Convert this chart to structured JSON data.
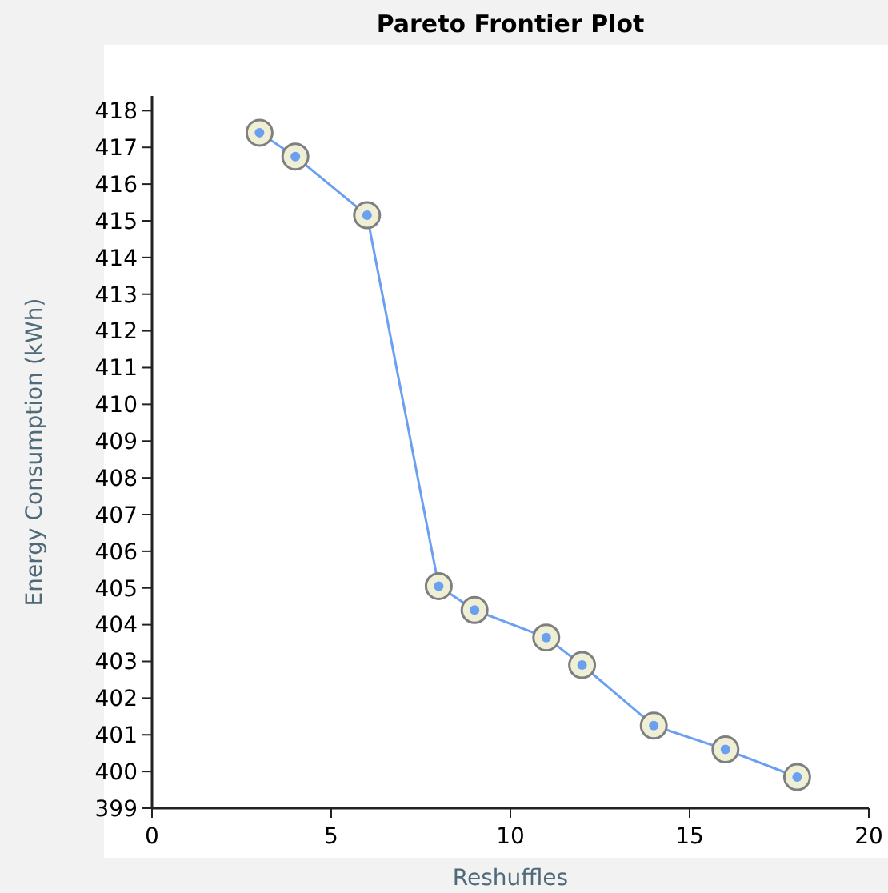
{
  "chart_data": {
    "type": "line",
    "title": "Pareto Frontier Plot",
    "xlabel": "Reshuffles",
    "ylabel": "Energy Consumption (kWh)",
    "x": [
      3,
      4,
      6,
      8,
      9,
      11,
      12,
      14,
      16,
      18
    ],
    "series": [
      {
        "color": "#6b9ff0",
        "values": [
          417.4,
          416.75,
          415.15,
          405.05,
          404.4,
          403.65,
          402.9,
          401.25,
          400.6,
          399.85
        ]
      }
    ],
    "xlim": [
      0,
      20
    ],
    "xticks": [
      0,
      5,
      10,
      15,
      20
    ],
    "ylim": [
      399,
      418.4
    ],
    "yticks": [
      399,
      400,
      401,
      402,
      403,
      404,
      405,
      406,
      407,
      408,
      409,
      410,
      411,
      412,
      413,
      414,
      415,
      416,
      417,
      418
    ],
    "grid": false,
    "marker": "circle",
    "line_style": "solid"
  }
}
